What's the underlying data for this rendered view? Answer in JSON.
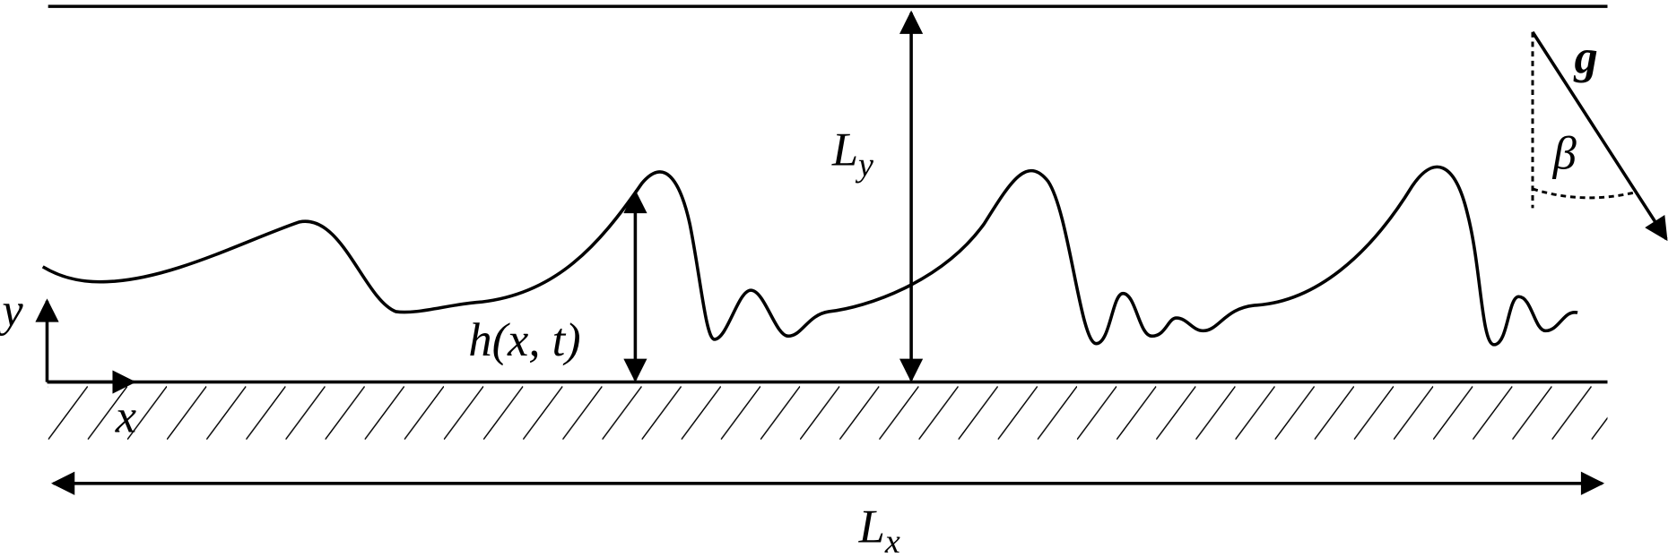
{
  "labels": {
    "ly": {
      "main": "L",
      "sub": "y"
    },
    "lx": {
      "main": "L",
      "sub": "x"
    },
    "height": "h(x, t)",
    "y_axis": "y",
    "x_axis": "x",
    "gravity": "g",
    "angle": "β"
  }
}
